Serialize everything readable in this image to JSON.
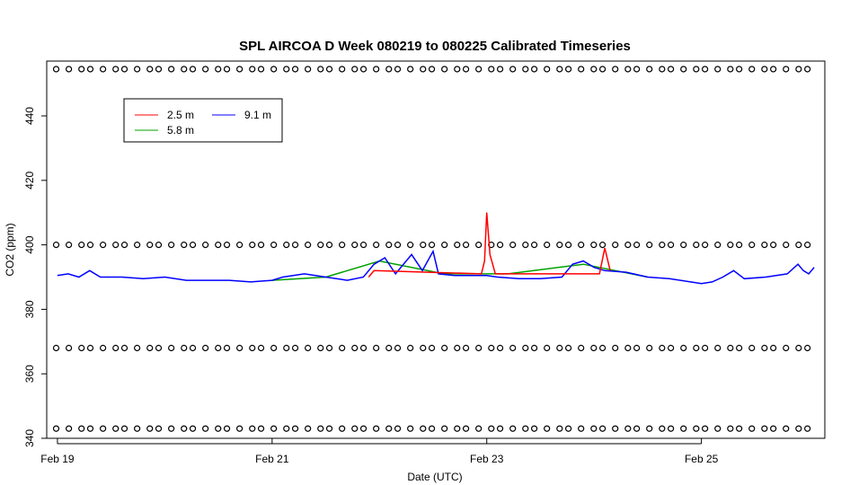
{
  "chart_data": {
    "type": "line",
    "title": "SPL AIRCOA D  Week 080219 to 080225  Calibrated Timeseries",
    "xlabel": "Date (UTC)",
    "ylabel": "CO2 (ppm)",
    "x_range_days": [
      19.0,
      26.0
    ],
    "xlim_days": [
      18.9,
      26.15
    ],
    "ylim": [
      340,
      457
    ],
    "x_ticks": [
      {
        "day": 19,
        "label": "Feb 19"
      },
      {
        "day": 21,
        "label": "Feb 21"
      },
      {
        "day": 23,
        "label": "Feb 23"
      },
      {
        "day": 25,
        "label": "Feb 25"
      }
    ],
    "y_ticks": [
      {
        "value": 340,
        "label": "340"
      },
      {
        "value": 360,
        "label": "360"
      },
      {
        "value": 380,
        "label": "380"
      },
      {
        "value": 400,
        "label": "400"
      },
      {
        "value": 420,
        "label": "420"
      },
      {
        "value": 440,
        "label": "440"
      }
    ],
    "legend": {
      "position": "top-left",
      "entries": [
        {
          "name": "2.5 m",
          "color": "#ff0000"
        },
        {
          "name": "5.8 m",
          "color": "#00a000"
        },
        {
          "name": "9.1 m",
          "color": "#0000ff"
        }
      ]
    },
    "series": [
      {
        "name": "9.1 m",
        "color": "#0000ff",
        "points": [
          [
            19.0,
            390.5
          ],
          [
            19.1,
            391
          ],
          [
            19.2,
            390
          ],
          [
            19.3,
            392
          ],
          [
            19.4,
            390
          ],
          [
            19.6,
            390
          ],
          [
            19.8,
            389.5
          ],
          [
            20.0,
            390
          ],
          [
            20.2,
            389
          ],
          [
            20.4,
            389
          ],
          [
            20.6,
            389
          ],
          [
            20.8,
            388.5
          ],
          [
            21.0,
            389
          ],
          [
            21.1,
            390
          ],
          [
            21.3,
            391
          ],
          [
            21.5,
            390
          ],
          [
            21.7,
            389
          ],
          [
            21.85,
            390
          ],
          [
            21.95,
            394
          ],
          [
            22.05,
            396
          ],
          [
            22.15,
            391
          ],
          [
            22.3,
            397
          ],
          [
            22.4,
            392
          ],
          [
            22.5,
            398
          ],
          [
            22.55,
            391
          ],
          [
            22.7,
            390.5
          ],
          [
            22.9,
            390.5
          ],
          [
            23.0,
            390.5
          ],
          [
            23.1,
            390
          ],
          [
            23.3,
            389.5
          ],
          [
            23.5,
            389.5
          ],
          [
            23.7,
            390
          ],
          [
            23.8,
            394
          ],
          [
            23.9,
            395
          ],
          [
            24.0,
            393
          ],
          [
            24.1,
            392
          ],
          [
            24.3,
            391.5
          ],
          [
            24.5,
            390
          ],
          [
            24.7,
            389.5
          ],
          [
            24.9,
            388.5
          ],
          [
            25.0,
            388
          ],
          [
            25.1,
            388.5
          ],
          [
            25.2,
            390
          ],
          [
            25.3,
            392
          ],
          [
            25.4,
            389.5
          ],
          [
            25.6,
            390
          ],
          [
            25.8,
            391
          ],
          [
            25.9,
            394
          ],
          [
            25.95,
            392
          ],
          [
            26.0,
            391
          ],
          [
            26.05,
            393
          ]
        ]
      },
      {
        "name": "2.5 m",
        "color": "#ff0000",
        "points": [
          [
            21.9,
            390
          ],
          [
            21.95,
            392
          ],
          [
            22.95,
            391
          ],
          [
            22.98,
            395
          ],
          [
            23.0,
            410
          ],
          [
            23.03,
            397
          ],
          [
            23.08,
            391
          ],
          [
            24.05,
            391
          ],
          [
            24.1,
            399
          ],
          [
            24.15,
            392
          ]
        ]
      },
      {
        "name": "5.8 m",
        "color": "#00a000",
        "points": [
          [
            21.0,
            389
          ],
          [
            21.5,
            390
          ],
          [
            22.0,
            395
          ],
          [
            22.6,
            391
          ],
          [
            23.2,
            391
          ],
          [
            23.9,
            394
          ],
          [
            24.5,
            390
          ]
        ]
      }
    ],
    "flag_rows": [
      {
        "value": 454.5,
        "marker": "o"
      },
      {
        "value": 400.0,
        "marker": "o"
      },
      {
        "value": 368.0,
        "marker": "o"
      },
      {
        "value": 343.0,
        "marker": "o"
      }
    ]
  }
}
